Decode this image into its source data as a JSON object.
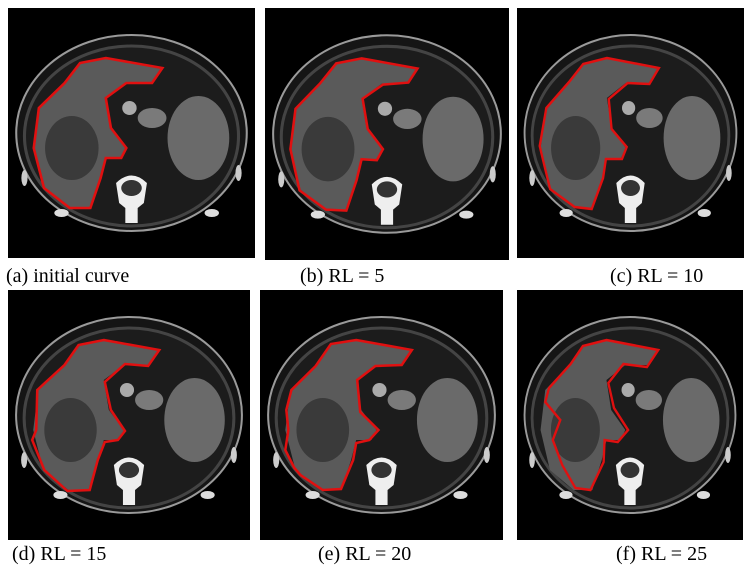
{
  "panels": [
    {
      "caption": "(a) initial curve"
    },
    {
      "caption": "(b) RL = 5"
    },
    {
      "caption": "(c) RL = 10"
    },
    {
      "caption": "(d) RL = 15"
    },
    {
      "caption": "(e) RL = 20"
    },
    {
      "caption": "(f) RL = 25"
    }
  ]
}
